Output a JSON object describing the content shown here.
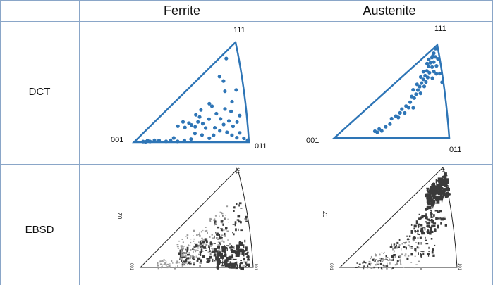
{
  "table": {
    "col_headers": [
      "Ferrite",
      "Austenite"
    ],
    "row_labels": [
      "DCT",
      "EBSD"
    ]
  },
  "dct_ferrite": {
    "labels": {
      "top": "111",
      "left": "001",
      "right": "011"
    },
    "points": [
      [
        0.9,
        0.93
      ],
      [
        0.82,
        0.8
      ],
      [
        0.85,
        0.72
      ],
      [
        0.7,
        0.55
      ],
      [
        0.62,
        0.52
      ],
      [
        0.57,
        0.48
      ],
      [
        0.6,
        0.42
      ],
      [
        0.72,
        0.5
      ],
      [
        0.5,
        0.38
      ],
      [
        0.46,
        0.32
      ],
      [
        0.4,
        0.4
      ],
      [
        0.52,
        0.33
      ],
      [
        0.58,
        0.35
      ],
      [
        0.55,
        0.28
      ],
      [
        0.62,
        0.3
      ],
      [
        0.68,
        0.34
      ],
      [
        0.75,
        0.38
      ],
      [
        0.78,
        0.3
      ],
      [
        0.83,
        0.4
      ],
      [
        0.88,
        0.35
      ],
      [
        0.85,
        0.25
      ],
      [
        0.8,
        0.22
      ],
      [
        0.88,
        0.18
      ],
      [
        0.92,
        0.22
      ],
      [
        0.95,
        0.28
      ],
      [
        0.93,
        0.1
      ],
      [
        0.9,
        0.05
      ],
      [
        0.86,
        0.08
      ],
      [
        0.82,
        0.12
      ],
      [
        0.76,
        0.15
      ],
      [
        0.7,
        0.1
      ],
      [
        0.66,
        0.06
      ],
      [
        0.6,
        0.12
      ],
      [
        0.54,
        0.16
      ],
      [
        0.5,
        0.06
      ],
      [
        0.44,
        0.04
      ],
      [
        0.38,
        0.02
      ],
      [
        0.32,
        0.06
      ],
      [
        0.28,
        0.03
      ],
      [
        0.22,
        0.08
      ],
      [
        0.18,
        0.1
      ],
      [
        0.14,
        0.05
      ],
      [
        0.12,
        0.14
      ],
      [
        0.1,
        0.03
      ],
      [
        0.08,
        0.08
      ],
      [
        0.35,
        0.12
      ],
      [
        0.96,
        0.04
      ],
      [
        0.99,
        0.02
      ],
      [
        0.72,
        0.2
      ],
      [
        0.64,
        0.22
      ],
      [
        0.9,
        0.45
      ],
      [
        0.95,
        0.55
      ],
      [
        0.85,
        0.6
      ],
      [
        0.45,
        0.45
      ]
    ],
    "colors": {
      "outline": "#2e75b6",
      "point": "#2e75b6"
    }
  },
  "dct_austenite": {
    "labels": {
      "top": "111",
      "left": "001",
      "right": "011"
    },
    "points": [
      [
        0.98,
        0.98
      ],
      [
        0.96,
        0.95
      ],
      [
        0.94,
        0.92
      ],
      [
        0.97,
        0.9
      ],
      [
        0.92,
        0.88
      ],
      [
        0.9,
        0.86
      ],
      [
        0.95,
        0.86
      ],
      [
        0.88,
        0.82
      ],
      [
        0.93,
        0.82
      ],
      [
        0.86,
        0.78
      ],
      [
        0.9,
        0.78
      ],
      [
        0.84,
        0.75
      ],
      [
        0.88,
        0.74
      ],
      [
        0.82,
        0.72
      ],
      [
        0.86,
        0.7
      ],
      [
        0.8,
        0.69
      ],
      [
        0.84,
        0.66
      ],
      [
        0.78,
        0.66
      ],
      [
        0.94,
        0.76
      ],
      [
        0.97,
        0.8
      ],
      [
        0.99,
        0.86
      ],
      [
        0.92,
        0.7
      ],
      [
        0.96,
        0.72
      ],
      [
        0.76,
        0.62
      ],
      [
        0.8,
        0.6
      ],
      [
        0.74,
        0.58
      ],
      [
        0.72,
        0.62
      ],
      [
        0.7,
        0.55
      ],
      [
        0.66,
        0.52
      ],
      [
        0.62,
        0.5
      ],
      [
        0.68,
        0.48
      ],
      [
        0.6,
        0.45
      ],
      [
        0.56,
        0.42
      ],
      [
        0.64,
        0.42
      ],
      [
        0.52,
        0.4
      ],
      [
        0.58,
        0.38
      ],
      [
        0.72,
        0.45
      ],
      [
        0.5,
        0.3
      ],
      [
        0.46,
        0.26
      ],
      [
        0.4,
        0.24
      ],
      [
        0.36,
        0.2
      ],
      [
        0.42,
        0.18
      ],
      [
        0.38,
        0.16
      ],
      [
        1.0,
        0.6
      ],
      [
        0.99,
        0.7
      ],
      [
        0.95,
        0.93
      ],
      [
        0.91,
        0.93
      ],
      [
        0.89,
        0.9
      ],
      [
        0.85,
        0.84
      ],
      [
        0.82,
        0.8
      ],
      [
        0.78,
        0.74
      ],
      [
        0.74,
        0.7
      ]
    ],
    "colors": {
      "outline": "#2e75b6",
      "point": "#2e75b6"
    }
  },
  "ebsd_ferrite": {
    "labels": {
      "top": "111",
      "left": "001",
      "right": "101",
      "side": "Z0"
    }
  },
  "ebsd_austenite": {
    "labels": {
      "top": "111",
      "left": "001",
      "right": "101",
      "side": "Z0"
    }
  }
}
